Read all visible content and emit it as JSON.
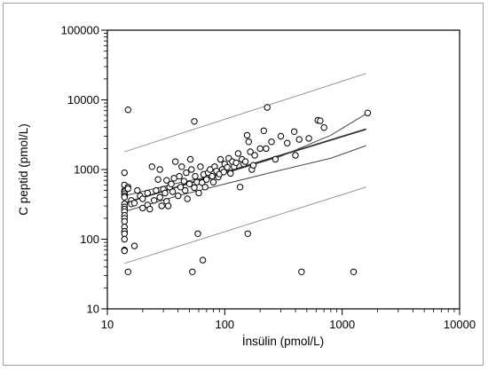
{
  "chart_data": {
    "type": "scatter",
    "title": "",
    "xlabel": "İnsülin (pmol/L)",
    "ylabel": "C peptid (pmol/L)",
    "x_scale": "log",
    "y_scale": "log",
    "xlim": [
      10,
      10000
    ],
    "ylim": [
      10,
      100000
    ],
    "x_ticks": [
      "10",
      "100",
      "1000",
      "10000"
    ],
    "y_ticks": [
      "10",
      "100",
      "1000",
      "10000",
      "100000"
    ],
    "grid": false,
    "legend": "none",
    "colors": {
      "marker": "#000000",
      "fit_line": "#333333",
      "ci_line": "#333333",
      "pi_line": "#808080"
    },
    "regression": {
      "x": [
        14,
        1600
      ],
      "y": [
        330,
        3800
      ]
    },
    "confidence_band": {
      "x": [
        14,
        40,
        100,
        300,
        800,
        1600
      ],
      "lower": [
        250,
        420,
        620,
        980,
        1450,
        2200
      ],
      "upper": [
        420,
        640,
        880,
        1550,
        3100,
        6300
      ]
    },
    "prediction_band": {
      "x": [
        14,
        1600
      ],
      "lower": [
        45,
        560
      ],
      "upper": [
        1800,
        24000
      ]
    },
    "points": [
      [
        15,
        7200
      ],
      [
        55,
        4900
      ],
      [
        230,
        7800
      ],
      [
        620,
        5100
      ],
      [
        650,
        5000
      ],
      [
        1650,
        6500
      ],
      [
        14,
        900
      ],
      [
        14,
        600
      ],
      [
        14,
        500
      ],
      [
        14,
        480
      ],
      [
        14,
        450
      ],
      [
        14,
        420
      ],
      [
        14,
        400
      ],
      [
        14,
        320
      ],
      [
        14,
        290
      ],
      [
        14,
        270
      ],
      [
        14,
        250
      ],
      [
        14,
        220
      ],
      [
        14,
        200
      ],
      [
        14,
        180
      ],
      [
        14,
        150
      ],
      [
        14,
        130
      ],
      [
        14,
        120
      ],
      [
        14,
        100
      ],
      [
        14,
        70
      ],
      [
        14,
        68
      ],
      [
        15,
        560
      ],
      [
        15,
        530
      ],
      [
        15,
        34
      ],
      [
        16,
        360
      ],
      [
        16,
        320
      ],
      [
        17,
        80
      ],
      [
        17,
        330
      ],
      [
        18,
        500
      ],
      [
        19,
        420
      ],
      [
        20,
        280
      ],
      [
        20,
        380
      ],
      [
        22,
        310
      ],
      [
        22,
        460
      ],
      [
        23,
        270
      ],
      [
        24,
        1100
      ],
      [
        25,
        360
      ],
      [
        26,
        500
      ],
      [
        27,
        720
      ],
      [
        28,
        1000
      ],
      [
        28,
        400
      ],
      [
        29,
        300
      ],
      [
        30,
        520
      ],
      [
        31,
        460
      ],
      [
        32,
        350
      ],
      [
        32,
        700
      ],
      [
        33,
        300
      ],
      [
        34,
        560
      ],
      [
        35,
        620
      ],
      [
        36,
        480
      ],
      [
        37,
        750
      ],
      [
        38,
        1300
      ],
      [
        40,
        420
      ],
      [
        41,
        800
      ],
      [
        42,
        560
      ],
      [
        43,
        1100
      ],
      [
        45,
        680
      ],
      [
        46,
        500
      ],
      [
        47,
        900
      ],
      [
        48,
        380
      ],
      [
        50,
        620
      ],
      [
        51,
        1400
      ],
      [
        52,
        1000
      ],
      [
        53,
        34
      ],
      [
        55,
        550
      ],
      [
        56,
        800
      ],
      [
        58,
        660
      ],
      [
        59,
        120
      ],
      [
        60,
        460
      ],
      [
        62,
        1100
      ],
      [
        64,
        650
      ],
      [
        65,
        50
      ],
      [
        66,
        850
      ],
      [
        68,
        560
      ],
      [
        70,
        720
      ],
      [
        72,
        900
      ],
      [
        75,
        1000
      ],
      [
        78,
        800
      ],
      [
        80,
        660
      ],
      [
        82,
        1100
      ],
      [
        85,
        950
      ],
      [
        88,
        780
      ],
      [
        90,
        860
      ],
      [
        92,
        1400
      ],
      [
        95,
        1000
      ],
      [
        98,
        920
      ],
      [
        100,
        1200
      ],
      [
        105,
        1080
      ],
      [
        108,
        1450
      ],
      [
        112,
        880
      ],
      [
        116,
        1300
      ],
      [
        120,
        1100
      ],
      [
        125,
        1250
      ],
      [
        130,
        1700
      ],
      [
        135,
        560
      ],
      [
        140,
        1400
      ],
      [
        145,
        1200
      ],
      [
        150,
        1300
      ],
      [
        155,
        3100
      ],
      [
        157,
        120
      ],
      [
        160,
        2500
      ],
      [
        165,
        1800
      ],
      [
        170,
        1000
      ],
      [
        175,
        1150
      ],
      [
        180,
        1600
      ],
      [
        200,
        2000
      ],
      [
        215,
        3600
      ],
      [
        225,
        2000
      ],
      [
        250,
        2500
      ],
      [
        270,
        1400
      ],
      [
        300,
        3000
      ],
      [
        340,
        2400
      ],
      [
        390,
        3500
      ],
      [
        400,
        1600
      ],
      [
        430,
        2700
      ],
      [
        450,
        34
      ],
      [
        520,
        2800
      ],
      [
        700,
        4000
      ],
      [
        1250,
        34
      ]
    ]
  }
}
